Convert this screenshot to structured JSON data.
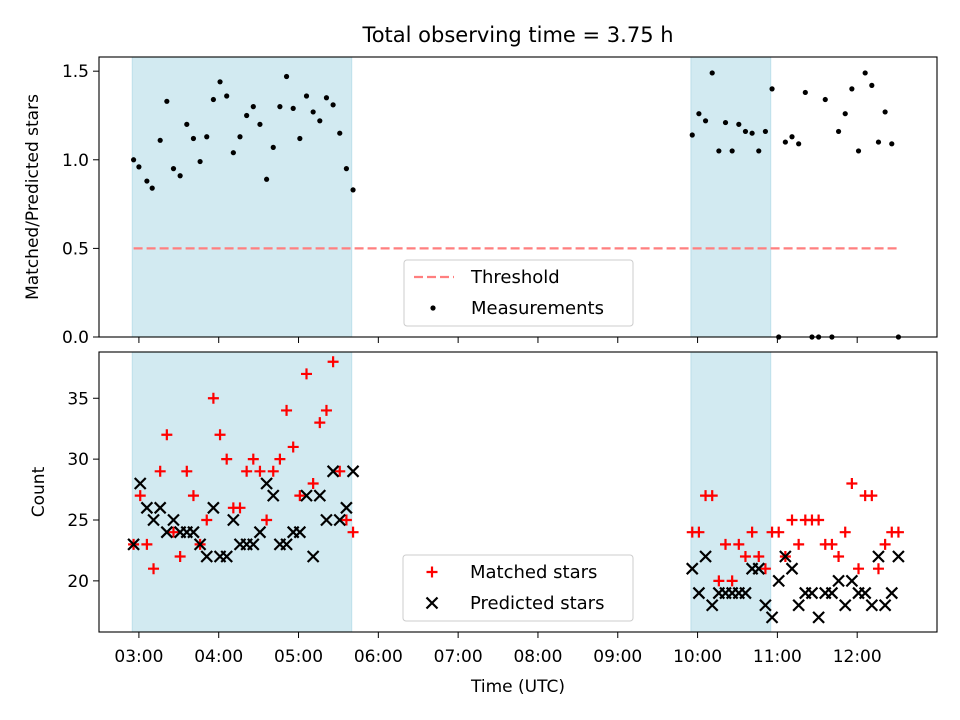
{
  "chart_data": {
    "title": "Total observing time = 3.75 h",
    "xlabel": "Time (UTC)",
    "x_ticks": [
      "03:00",
      "04:00",
      "05:00",
      "06:00",
      "07:00",
      "08:00",
      "09:00",
      "10:00",
      "11:00",
      "12:00"
    ],
    "x_range": [
      "02:30",
      "13:00"
    ],
    "shaded_intervals": [
      [
        "02:55",
        "05:40"
      ],
      [
        "09:55",
        "10:55"
      ]
    ],
    "panels": [
      {
        "type": "scatter",
        "ylabel": "Matched/Predicted stars",
        "ylim": [
          0,
          1.58
        ],
        "y_ticks": [
          "0.0",
          "0.5",
          "1.0",
          "1.5"
        ],
        "legend_position": "lower center",
        "threshold": {
          "name": "Threshold",
          "value": 0.5,
          "x_start": "02:56",
          "x_end": "12:30",
          "color": "#ff7f7f"
        },
        "series": [
          {
            "name": "Measurements",
            "marker": "dot",
            "color": "#000000",
            "points": [
              [
                "02:56",
                1.0
              ],
              [
                "03:00",
                0.96
              ],
              [
                "03:06",
                0.88
              ],
              [
                "03:10",
                0.84
              ],
              [
                "03:16",
                1.11
              ],
              [
                "03:21",
                1.33
              ],
              [
                "03:26",
                0.95
              ],
              [
                "03:31",
                0.91
              ],
              [
                "03:36",
                1.2
              ],
              [
                "03:41",
                1.12
              ],
              [
                "03:46",
                0.99
              ],
              [
                "03:51",
                1.13
              ],
              [
                "03:56",
                1.34
              ],
              [
                "04:01",
                1.44
              ],
              [
                "04:06",
                1.36
              ],
              [
                "04:11",
                1.04
              ],
              [
                "04:16",
                1.13
              ],
              [
                "04:21",
                1.25
              ],
              [
                "04:26",
                1.3
              ],
              [
                "04:31",
                1.2
              ],
              [
                "04:36",
                0.89
              ],
              [
                "04:41",
                1.07
              ],
              [
                "04:46",
                1.3
              ],
              [
                "04:51",
                1.47
              ],
              [
                "04:56",
                1.29
              ],
              [
                "05:01",
                1.12
              ],
              [
                "05:06",
                1.36
              ],
              [
                "05:11",
                1.27
              ],
              [
                "05:16",
                1.22
              ],
              [
                "05:21",
                1.35
              ],
              [
                "05:26",
                1.31
              ],
              [
                "05:31",
                1.15
              ],
              [
                "05:36",
                0.95
              ],
              [
                "05:41",
                0.83
              ],
              [
                "09:56",
                1.14
              ],
              [
                "10:01",
                1.26
              ],
              [
                "10:06",
                1.22
              ],
              [
                "10:11",
                1.49
              ],
              [
                "10:16",
                1.05
              ],
              [
                "10:21",
                1.21
              ],
              [
                "10:26",
                1.05
              ],
              [
                "10:31",
                1.2
              ],
              [
                "10:36",
                1.16
              ],
              [
                "10:41",
                1.15
              ],
              [
                "10:46",
                1.05
              ],
              [
                "10:51",
                1.16
              ],
              [
                "10:56",
                1.4
              ],
              [
                "11:01",
                0.0
              ],
              [
                "11:06",
                1.1
              ],
              [
                "11:11",
                1.13
              ],
              [
                "11:16",
                1.09
              ],
              [
                "11:21",
                1.38
              ],
              [
                "11:26",
                0.0
              ],
              [
                "11:31",
                0.0
              ],
              [
                "11:36",
                1.34
              ],
              [
                "11:41",
                0.0
              ],
              [
                "11:46",
                1.16
              ],
              [
                "11:51",
                1.26
              ],
              [
                "11:56",
                1.4
              ],
              [
                "12:01",
                1.05
              ],
              [
                "12:06",
                1.49
              ],
              [
                "12:11",
                1.42
              ],
              [
                "12:16",
                1.1
              ],
              [
                "12:21",
                1.27
              ],
              [
                "12:26",
                1.09
              ],
              [
                "12:31",
                0.0
              ]
            ]
          }
        ]
      },
      {
        "type": "scatter",
        "ylabel": "Count",
        "ylim": [
          15.8,
          38.8
        ],
        "y_ticks": [
          "20",
          "25",
          "30",
          "35"
        ],
        "legend_position": "lower center",
        "series": [
          {
            "name": "Matched stars",
            "marker": "plus",
            "color": "#ff0000",
            "points": [
              [
                "02:56",
                23
              ],
              [
                "03:01",
                27
              ],
              [
                "03:06",
                23
              ],
              [
                "03:11",
                21
              ],
              [
                "03:16",
                29
              ],
              [
                "03:21",
                32
              ],
              [
                "03:26",
                24
              ],
              [
                "03:31",
                22
              ],
              [
                "03:36",
                29
              ],
              [
                "03:41",
                27
              ],
              [
                "03:46",
                23
              ],
              [
                "03:51",
                25
              ],
              [
                "03:56",
                35
              ],
              [
                "04:01",
                32
              ],
              [
                "04:06",
                30
              ],
              [
                "04:11",
                26
              ],
              [
                "04:16",
                26
              ],
              [
                "04:21",
                29
              ],
              [
                "04:26",
                30
              ],
              [
                "04:31",
                29
              ],
              [
                "04:36",
                25
              ],
              [
                "04:41",
                29
              ],
              [
                "04:46",
                30
              ],
              [
                "04:51",
                34
              ],
              [
                "04:56",
                31
              ],
              [
                "05:01",
                27
              ],
              [
                "05:06",
                37
              ],
              [
                "05:11",
                28
              ],
              [
                "05:16",
                33
              ],
              [
                "05:21",
                34
              ],
              [
                "05:26",
                38
              ],
              [
                "05:31",
                29
              ],
              [
                "05:36",
                25
              ],
              [
                "05:41",
                24
              ],
              [
                "09:56",
                24
              ],
              [
                "10:01",
                24
              ],
              [
                "10:06",
                27
              ],
              [
                "10:11",
                27
              ],
              [
                "10:16",
                20
              ],
              [
                "10:21",
                23
              ],
              [
                "10:26",
                20
              ],
              [
                "10:31",
                23
              ],
              [
                "10:36",
                22
              ],
              [
                "10:41",
                24
              ],
              [
                "10:46",
                22
              ],
              [
                "10:51",
                21
              ],
              [
                "10:56",
                24
              ],
              [
                "11:01",
                24
              ],
              [
                "11:06",
                22
              ],
              [
                "11:11",
                25
              ],
              [
                "11:16",
                23
              ],
              [
                "11:21",
                25
              ],
              [
                "11:26",
                25
              ],
              [
                "11:31",
                25
              ],
              [
                "11:36",
                23
              ],
              [
                "11:41",
                23
              ],
              [
                "11:46",
                22
              ],
              [
                "11:51",
                24
              ],
              [
                "11:56",
                28
              ],
              [
                "12:01",
                21
              ],
              [
                "12:06",
                27
              ],
              [
                "12:11",
                27
              ],
              [
                "12:16",
                21
              ],
              [
                "12:21",
                23
              ],
              [
                "12:26",
                24
              ],
              [
                "12:31",
                24
              ]
            ]
          },
          {
            "name": "Predicted stars",
            "marker": "x",
            "color": "#000000",
            "points": [
              [
                "02:56",
                23
              ],
              [
                "03:01",
                28
              ],
              [
                "03:06",
                26
              ],
              [
                "03:11",
                25
              ],
              [
                "03:16",
                26
              ],
              [
                "03:21",
                24
              ],
              [
                "03:26",
                25
              ],
              [
                "03:31",
                24
              ],
              [
                "03:36",
                24
              ],
              [
                "03:41",
                24
              ],
              [
                "03:46",
                23
              ],
              [
                "03:51",
                22
              ],
              [
                "03:56",
                26
              ],
              [
                "04:01",
                22
              ],
              [
                "04:06",
                22
              ],
              [
                "04:11",
                25
              ],
              [
                "04:16",
                23
              ],
              [
                "04:21",
                23
              ],
              [
                "04:26",
                23
              ],
              [
                "04:31",
                24
              ],
              [
                "04:36",
                28
              ],
              [
                "04:41",
                27
              ],
              [
                "04:46",
                23
              ],
              [
                "04:51",
                23
              ],
              [
                "04:56",
                24
              ],
              [
                "05:01",
                24
              ],
              [
                "05:06",
                27
              ],
              [
                "05:11",
                22
              ],
              [
                "05:16",
                27
              ],
              [
                "05:21",
                25
              ],
              [
                "05:26",
                29
              ],
              [
                "05:31",
                25
              ],
              [
                "05:36",
                26
              ],
              [
                "05:41",
                29
              ],
              [
                "09:56",
                21
              ],
              [
                "10:01",
                19
              ],
              [
                "10:06",
                22
              ],
              [
                "10:11",
                18
              ],
              [
                "10:16",
                19
              ],
              [
                "10:21",
                19
              ],
              [
                "10:26",
                19
              ],
              [
                "10:31",
                19
              ],
              [
                "10:36",
                19
              ],
              [
                "10:41",
                21
              ],
              [
                "10:46",
                21
              ],
              [
                "10:51",
                18
              ],
              [
                "10:56",
                17
              ],
              [
                "11:01",
                20
              ],
              [
                "11:06",
                22
              ],
              [
                "11:11",
                21
              ],
              [
                "11:16",
                18
              ],
              [
                "11:21",
                19
              ],
              [
                "11:26",
                19
              ],
              [
                "11:31",
                17
              ],
              [
                "11:36",
                19
              ],
              [
                "11:41",
                19
              ],
              [
                "11:46",
                20
              ],
              [
                "11:51",
                18
              ],
              [
                "11:56",
                20
              ],
              [
                "12:01",
                19
              ],
              [
                "12:06",
                19
              ],
              [
                "12:11",
                18
              ],
              [
                "12:16",
                22
              ],
              [
                "12:21",
                18
              ],
              [
                "12:26",
                19
              ],
              [
                "12:31",
                22
              ]
            ]
          }
        ]
      }
    ],
    "shade_color": "#add8e6"
  }
}
